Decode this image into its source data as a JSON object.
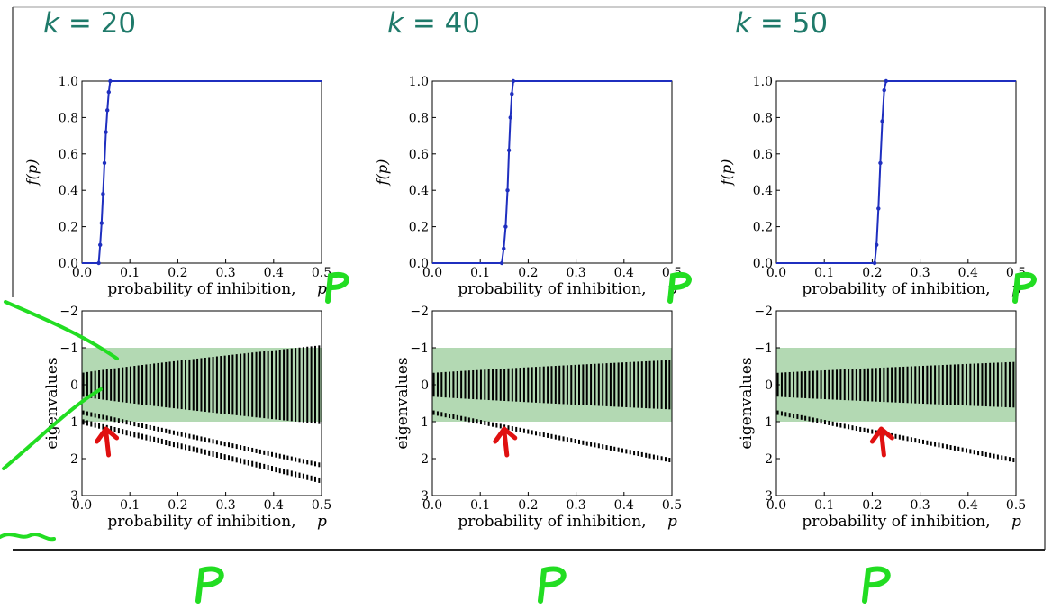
{
  "panels": [
    {
      "k_symbol": "k",
      "k_equals": "= 20",
      "transition": {
        "p": [
          0.0,
          0.035,
          0.038,
          0.041,
          0.044,
          0.047,
          0.05,
          0.053,
          0.056,
          0.059,
          0.5
        ],
        "f": [
          0.0,
          0.0,
          0.1,
          0.22,
          0.38,
          0.55,
          0.72,
          0.84,
          0.94,
          1.0,
          1.0
        ]
      },
      "threshold_p": 0.05,
      "spectrum_growth": "wide"
    },
    {
      "k_symbol": "k",
      "k_equals": "= 40",
      "transition": {
        "p": [
          0.0,
          0.145,
          0.149,
          0.153,
          0.157,
          0.16,
          0.163,
          0.166,
          0.169,
          0.5
        ],
        "f": [
          0.0,
          0.0,
          0.08,
          0.2,
          0.4,
          0.62,
          0.8,
          0.93,
          1.0,
          1.0
        ]
      },
      "threshold_p": 0.15,
      "spectrum_growth": "medium"
    },
    {
      "k_symbol": "k",
      "k_equals": "= 50",
      "transition": {
        "p": [
          0.0,
          0.205,
          0.209,
          0.213,
          0.217,
          0.221,
          0.225,
          0.229,
          0.5
        ],
        "f": [
          0.0,
          0.0,
          0.1,
          0.3,
          0.55,
          0.78,
          0.95,
          1.0,
          1.0
        ]
      },
      "threshold_p": 0.2,
      "spectrum_growth": "narrow"
    }
  ],
  "chart_data": [
    {
      "type": "line",
      "title": "",
      "xlabel": "probability of inhibition, p",
      "ylabel": "f(p)",
      "xlim": [
        0.0,
        0.5
      ],
      "ylim": [
        0.0,
        1.0
      ],
      "x_ticks": [
        "0.0",
        "0.1",
        "0.2",
        "0.3",
        "0.4",
        "0.5"
      ],
      "y_ticks": [
        "0.0",
        "0.2",
        "0.4",
        "0.6",
        "0.8",
        "1.0"
      ],
      "series_color": "#1f2fbf"
    },
    {
      "type": "scatter",
      "title": "",
      "xlabel": "probability of inhibition, p",
      "ylabel": "eigenvalues",
      "xlim": [
        0.0,
        0.5
      ],
      "ylim": [
        3,
        -2
      ],
      "x_ticks": [
        "0.0",
        "0.1",
        "0.2",
        "0.3",
        "0.4",
        "0.5"
      ],
      "y_ticks": [
        "−2",
        "−1",
        "0",
        "1",
        "2",
        "3"
      ],
      "stable_band": [
        -1,
        1
      ],
      "band_color": "#b3d9b3"
    }
  ],
  "annotations": {
    "p_label": "P",
    "ink_green": "#22dd22",
    "ink_red": "#e01010"
  },
  "colors": {
    "title": "#1f7a6a",
    "curve": "#1f2fbf",
    "band": "#b3d9b3"
  }
}
